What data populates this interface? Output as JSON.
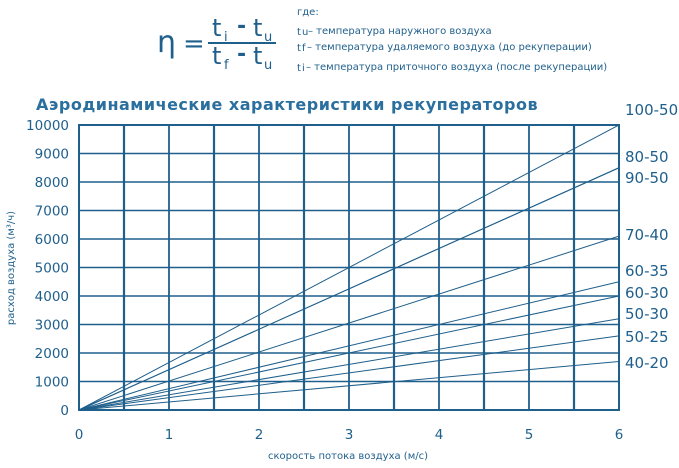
{
  "formula": {
    "eta": "η",
    "equals": "=",
    "numerator": {
      "t1": "t",
      "s1": "i",
      "minus": "-",
      "t2": "t",
      "s2": "u"
    },
    "denominator": {
      "t1": "t",
      "s1": "f",
      "minus": "-",
      "t2": "t",
      "s2": "u"
    }
  },
  "legend": {
    "heading": "где:",
    "items": [
      {
        "symbol": "t",
        "sub": "u",
        "text": " – температура наружного воздуха"
      },
      {
        "symbol": "t",
        "sub": "f",
        "text": " – температура  удаляемого  воздуха (до рекуперации)"
      },
      {
        "symbol": "t",
        "sub": "i",
        "text": " – температура приточного воздуха (после рекуперации)"
      }
    ]
  },
  "colors": {
    "primary": "#1f5f8c",
    "title": "#2a6f9e",
    "background": "#ffffff"
  },
  "chart_data": {
    "type": "line",
    "title": "Аэродинамические  характеристики  рекуператоров",
    "xlabel": "скорость потока воздуха (м/с)",
    "ylabel": "расход воздуха (м³/ч)",
    "xlim": [
      0,
      6
    ],
    "ylim": [
      0,
      10000
    ],
    "x_ticks": [
      "0",
      "1",
      "2",
      "3",
      "4",
      "5",
      "6"
    ],
    "y_ticks": [
      "0",
      "1000",
      "2000",
      "3000",
      "4000",
      "5000",
      "6000",
      "7000",
      "8000",
      "9000",
      "10000"
    ],
    "x_grid_step": 0.5,
    "y_grid_step": 1000,
    "grid": true,
    "series": [
      {
        "name": "100-50",
        "x": [
          0,
          6
        ],
        "y": [
          0,
          10000
        ]
      },
      {
        "name": "80-50",
        "x": [
          0,
          6
        ],
        "y": [
          0,
          8500
        ]
      },
      {
        "name": "90-50",
        "x": [
          0,
          6
        ],
        "y": [
          0,
          8500
        ]
      },
      {
        "name": "70-40",
        "x": [
          0,
          6
        ],
        "y": [
          0,
          6100
        ]
      },
      {
        "name": "60-35",
        "x": [
          0,
          6
        ],
        "y": [
          0,
          4500
        ]
      },
      {
        "name": "60-30",
        "x": [
          0,
          6
        ],
        "y": [
          0,
          4000
        ]
      },
      {
        "name": "50-30",
        "x": [
          0,
          6
        ],
        "y": [
          0,
          3200
        ]
      },
      {
        "name": "50-25",
        "x": [
          0,
          6
        ],
        "y": [
          0,
          2600
        ]
      },
      {
        "name": "40-20",
        "x": [
          0,
          6
        ],
        "y": [
          0,
          1700
        ]
      }
    ]
  }
}
